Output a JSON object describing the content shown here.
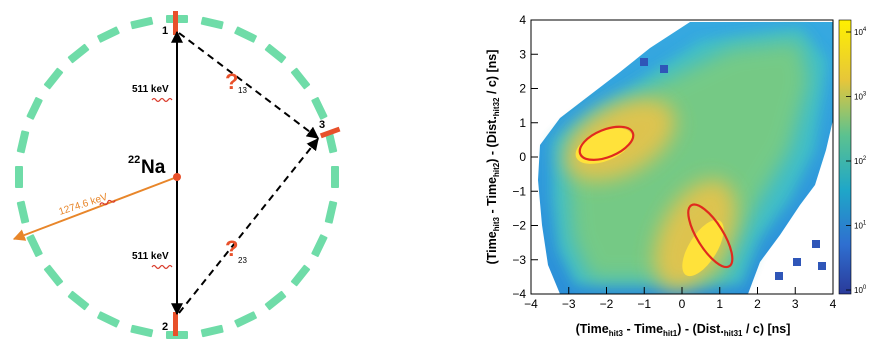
{
  "diagram": {
    "source_label": "Na",
    "source_mass_number": "22",
    "hits": [
      "1",
      "2",
      "3"
    ],
    "energy_up": "511 keV",
    "energy_down": "511 keV",
    "energy_gamma": "1274.6 keV",
    "unknown_13": {
      "mark": "?",
      "sub": "13"
    },
    "unknown_23": {
      "mark": "?",
      "sub": "23"
    },
    "colors": {
      "detector": "#6fdca8",
      "hit": "#e8502a",
      "gamma": "#e8862a",
      "wavy": "#d93b2b",
      "question": "#e8502a"
    }
  },
  "chart_data": {
    "type": "heatmap",
    "xlim": [
      -4,
      4
    ],
    "ylim": [
      -4,
      4
    ],
    "xticks": [
      "−4",
      "−3",
      "−2",
      "−1",
      "0",
      "1",
      "2",
      "3",
      "4"
    ],
    "yticks": [
      "−4",
      "−3",
      "−2",
      "−1",
      "0",
      "1",
      "2",
      "3",
      "4"
    ],
    "xlabel": {
      "t1": "(Time",
      "s1": "hit3",
      "t2": " - Time",
      "s2": "hit1",
      "t3": ") - (Dist.",
      "s3": "hit31",
      "t4": " / c) [ns]"
    },
    "ylabel": {
      "t1": "(Time",
      "s1": "hit3",
      "t2": " - Time",
      "s2": "hit2",
      "t3": ") - (Dist.",
      "s3": "hit32",
      "t4": " / c) [ns]"
    },
    "colorbar_scale": "log",
    "colorbar_ticks": [
      {
        "base": "1",
        "exp": "0"
      },
      {
        "base": "1",
        "exp": "1"
      },
      {
        "base": "1",
        "exp": "2"
      },
      {
        "base": "1",
        "exp": "3"
      },
      {
        "base": "1",
        "exp": "4"
      }
    ],
    "ellipses": [
      {
        "cx": -2.0,
        "cy": 0.4,
        "rx": 0.75,
        "ry": 0.4,
        "angle_deg": 22
      },
      {
        "cx": 0.75,
        "cy": -2.3,
        "rx": 0.95,
        "ry": 0.38,
        "angle_deg": -58
      }
    ]
  }
}
